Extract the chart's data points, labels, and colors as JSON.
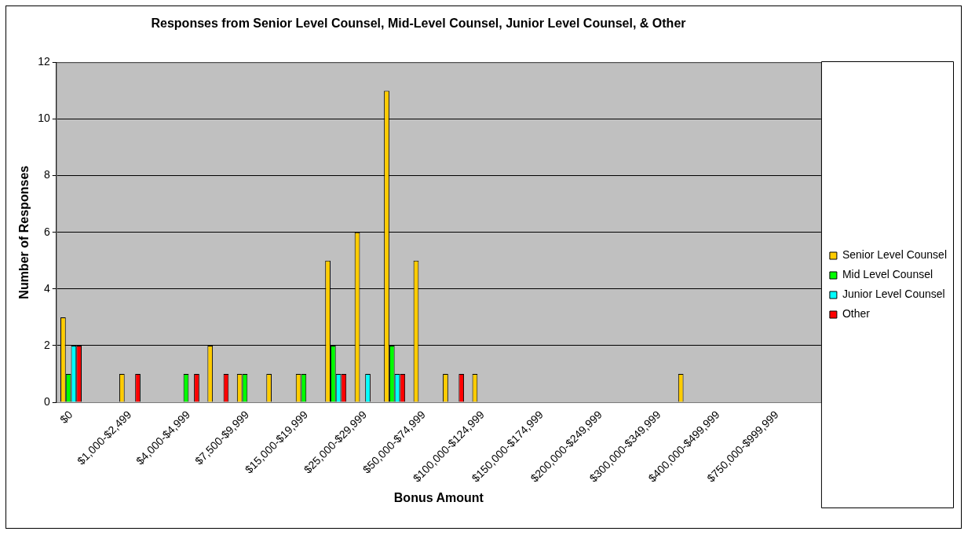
{
  "chart_data": {
    "type": "bar",
    "title": "Responses from Senior Level Counsel, Mid-Level Counsel, Junior Level Counsel, & Other",
    "xlabel": "Bonus Amount",
    "ylabel": "Number of Responses",
    "categories": [
      "$0",
      null,
      "$1,000-$2,499",
      null,
      "$4,000-$4,999",
      null,
      "$7,500-$9,999",
      null,
      "$15,000-$19,999",
      null,
      "$25,000-$29,999",
      null,
      "$50,000-$74,999",
      null,
      "$100,000-$124,999",
      null,
      "$150,000-$174,999",
      null,
      "$200,000-$249,999",
      null,
      "$300,000-$349,999",
      null,
      "$400,000-$499,999",
      null,
      "$750,000-$999,999",
      null
    ],
    "series": [
      {
        "name": "Senior Level Counsel",
        "color": "#ffcc00",
        "values": [
          3,
          0,
          1,
          0,
          0,
          2,
          1,
          1,
          1,
          5,
          6,
          11,
          5,
          1,
          1,
          0,
          0,
          0,
          0,
          0,
          0,
          1,
          0,
          0,
          0,
          0
        ]
      },
      {
        "name": "Mid Level Counsel",
        "color": "#00ff00",
        "values": [
          1,
          0,
          0,
          0,
          1,
          0,
          1,
          0,
          1,
          2,
          0,
          2,
          0,
          0,
          0,
          0,
          0,
          0,
          0,
          0,
          0,
          0,
          0,
          0,
          0,
          0
        ]
      },
      {
        "name": "Junior Level Counsel",
        "color": "#00ffff",
        "values": [
          2,
          0,
          0,
          0,
          0,
          0,
          0,
          0,
          0,
          1,
          1,
          1,
          0,
          0,
          0,
          0,
          0,
          0,
          0,
          0,
          0,
          0,
          0,
          0,
          0,
          0
        ]
      },
      {
        "name": "Other",
        "color": "#ff0000",
        "values": [
          2,
          0,
          1,
          0,
          1,
          1,
          0,
          0,
          0,
          1,
          0,
          1,
          0,
          1,
          0,
          0,
          0,
          0,
          0,
          0,
          0,
          0,
          0,
          0,
          0,
          0
        ]
      }
    ],
    "ylim": [
      0,
      12
    ],
    "yticks": [
      0,
      2,
      4,
      6,
      8,
      10,
      12
    ],
    "grid": "y",
    "legend": "right"
  }
}
